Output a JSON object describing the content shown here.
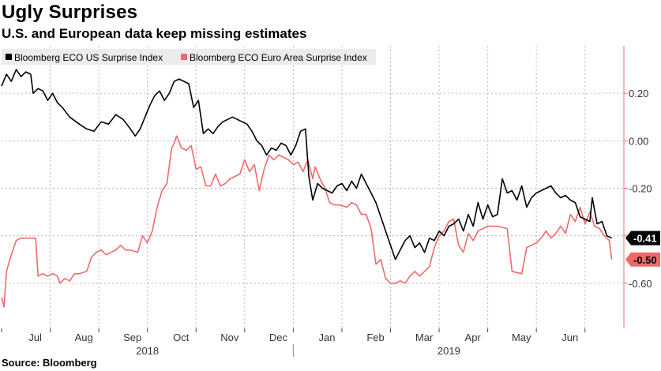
{
  "title": "Ugly Surprises",
  "subtitle": "U.S. and European data keep missing estimates",
  "source": "Source: Bloomberg",
  "colors": {
    "us": "#000000",
    "euro": "#f0696a",
    "axis": "#f07070",
    "grid": "#b8b8b8"
  },
  "chart_data": {
    "type": "line",
    "title": "Ugly Surprises",
    "ylim": [
      -0.79,
      0.4
    ],
    "yticks": [
      0.2,
      0.0,
      -0.2,
      -0.4,
      -0.6
    ],
    "ytick_labels": [
      "0.20",
      "0.00",
      "-0.20",
      "-0.40",
      "-0.60"
    ],
    "months": [
      {
        "label": "Jul",
        "t": 0.7
      },
      {
        "label": "Aug",
        "t": 1.7
      },
      {
        "label": "Sep",
        "t": 2.7
      },
      {
        "label": "Oct",
        "t": 3.7
      },
      {
        "label": "Nov",
        "t": 4.7
      },
      {
        "label": "Dec",
        "t": 5.7
      },
      {
        "label": "Jan",
        "t": 6.7
      },
      {
        "label": "Feb",
        "t": 7.7
      },
      {
        "label": "Mar",
        "t": 8.7
      },
      {
        "label": "Apr",
        "t": 9.7
      },
      {
        "label": "May",
        "t": 10.7
      },
      {
        "label": "Jun",
        "t": 11.7
      }
    ],
    "years": [
      "2018",
      "2019"
    ],
    "series": [
      {
        "name": "Bloomberg ECO US Surprise Index",
        "last_label": "-0.41",
        "points": [
          [
            0.0,
            0.23
          ],
          [
            0.1,
            0.28
          ],
          [
            0.2,
            0.25
          ],
          [
            0.3,
            0.3
          ],
          [
            0.4,
            0.27
          ],
          [
            0.5,
            0.29
          ],
          [
            0.6,
            0.28
          ],
          [
            0.65,
            0.2
          ],
          [
            0.75,
            0.22
          ],
          [
            0.85,
            0.21
          ],
          [
            0.95,
            0.17
          ],
          [
            1.05,
            0.2
          ],
          [
            1.15,
            0.16
          ],
          [
            1.25,
            0.14
          ],
          [
            1.4,
            0.1
          ],
          [
            1.6,
            0.07
          ],
          [
            1.75,
            0.05
          ],
          [
            1.9,
            0.04
          ],
          [
            2.05,
            0.08
          ],
          [
            2.2,
            0.07
          ],
          [
            2.35,
            0.11
          ],
          [
            2.5,
            0.09
          ],
          [
            2.65,
            0.05
          ],
          [
            2.75,
            0.02
          ],
          [
            2.85,
            0.05
          ],
          [
            2.95,
            0.1
          ],
          [
            3.05,
            0.15
          ],
          [
            3.15,
            0.19
          ],
          [
            3.25,
            0.21
          ],
          [
            3.35,
            0.17
          ],
          [
            3.45,
            0.2
          ],
          [
            3.55,
            0.25
          ],
          [
            3.65,
            0.26
          ],
          [
            3.75,
            0.25
          ],
          [
            3.85,
            0.24
          ],
          [
            3.95,
            0.14
          ],
          [
            4.05,
            0.17
          ],
          [
            4.15,
            0.03
          ],
          [
            4.25,
            0.05
          ],
          [
            4.35,
            0.03
          ],
          [
            4.45,
            0.06
          ],
          [
            4.55,
            0.08
          ],
          [
            4.65,
            0.09
          ],
          [
            4.75,
            0.1
          ],
          [
            4.85,
            0.09
          ],
          [
            4.95,
            0.08
          ],
          [
            5.05,
            0.07
          ],
          [
            5.15,
            0.04
          ],
          [
            5.25,
            0.0
          ],
          [
            5.35,
            -0.02
          ],
          [
            5.45,
            -0.06
          ],
          [
            5.55,
            -0.03
          ],
          [
            5.65,
            -0.04
          ],
          [
            5.75,
            -0.01
          ],
          [
            5.85,
            -0.02
          ],
          [
            5.95,
            -0.06
          ],
          [
            6.05,
            -0.02
          ],
          [
            6.15,
            0.04
          ],
          [
            6.25,
            0.05
          ],
          [
            6.32,
            -0.15
          ],
          [
            6.4,
            -0.25
          ],
          [
            6.5,
            -0.18
          ],
          [
            6.6,
            -0.2
          ],
          [
            6.7,
            -0.21
          ],
          [
            6.8,
            -0.22
          ],
          [
            6.9,
            -0.19
          ],
          [
            7.0,
            -0.18
          ],
          [
            7.1,
            -0.21
          ],
          [
            7.2,
            -0.17
          ],
          [
            7.3,
            -0.2
          ],
          [
            7.4,
            -0.14
          ],
          [
            7.5,
            -0.18
          ],
          [
            7.6,
            -0.22
          ],
          [
            7.7,
            -0.26
          ],
          [
            7.8,
            -0.32
          ],
          [
            7.9,
            -0.38
          ],
          [
            8.0,
            -0.44
          ],
          [
            8.1,
            -0.5
          ],
          [
            8.2,
            -0.46
          ],
          [
            8.3,
            -0.42
          ],
          [
            8.4,
            -0.4
          ],
          [
            8.5,
            -0.45
          ],
          [
            8.6,
            -0.43
          ],
          [
            8.7,
            -0.47
          ],
          [
            8.8,
            -0.41
          ],
          [
            8.9,
            -0.42
          ],
          [
            9.0,
            -0.38
          ],
          [
            9.1,
            -0.4
          ],
          [
            9.2,
            -0.36
          ],
          [
            9.3,
            -0.35
          ],
          [
            9.4,
            -0.33
          ],
          [
            9.5,
            -0.38
          ],
          [
            9.6,
            -0.31
          ],
          [
            9.7,
            -0.36
          ],
          [
            9.8,
            -0.26
          ],
          [
            9.9,
            -0.33
          ],
          [
            10.0,
            -0.27
          ],
          [
            10.1,
            -0.32
          ],
          [
            10.2,
            -0.31
          ],
          [
            10.3,
            -0.16
          ],
          [
            10.4,
            -0.22
          ],
          [
            10.5,
            -0.21
          ],
          [
            10.6,
            -0.25
          ],
          [
            10.7,
            -0.19
          ],
          [
            10.8,
            -0.28
          ],
          [
            10.9,
            -0.24
          ],
          [
            11.0,
            -0.22
          ],
          [
            11.1,
            -0.21
          ],
          [
            11.2,
            -0.2
          ],
          [
            11.3,
            -0.19
          ],
          [
            11.4,
            -0.22
          ],
          [
            11.5,
            -0.24
          ],
          [
            11.6,
            -0.23
          ],
          [
            11.7,
            -0.25
          ],
          [
            11.8,
            -0.26
          ],
          [
            11.9,
            -0.32
          ],
          [
            12.0,
            -0.33
          ],
          [
            12.1,
            -0.34
          ],
          [
            12.15,
            -0.24
          ],
          [
            12.25,
            -0.35
          ],
          [
            12.35,
            -0.34
          ],
          [
            12.45,
            -0.4
          ],
          [
            12.55,
            -0.41
          ]
        ]
      },
      {
        "name": "Bloomberg ECO Euro Area Surprise Index",
        "last_label": "-0.50",
        "points": [
          [
            0.0,
            -0.66
          ],
          [
            0.05,
            -0.7
          ],
          [
            0.1,
            -0.55
          ],
          [
            0.2,
            -0.48
          ],
          [
            0.3,
            -0.42
          ],
          [
            0.4,
            -0.41
          ],
          [
            0.5,
            -0.41
          ],
          [
            0.6,
            -0.41
          ],
          [
            0.7,
            -0.41
          ],
          [
            0.75,
            -0.57
          ],
          [
            0.85,
            -0.56
          ],
          [
            0.95,
            -0.57
          ],
          [
            1.05,
            -0.56
          ],
          [
            1.15,
            -0.57
          ],
          [
            1.2,
            -0.6
          ],
          [
            1.3,
            -0.58
          ],
          [
            1.4,
            -0.59
          ],
          [
            1.5,
            -0.56
          ],
          [
            1.6,
            -0.56
          ],
          [
            1.75,
            -0.55
          ],
          [
            1.85,
            -0.49
          ],
          [
            1.95,
            -0.47
          ],
          [
            2.05,
            -0.46
          ],
          [
            2.15,
            -0.48
          ],
          [
            2.25,
            -0.47
          ],
          [
            2.35,
            -0.46
          ],
          [
            2.45,
            -0.44
          ],
          [
            2.55,
            -0.46
          ],
          [
            2.65,
            -0.46
          ],
          [
            2.8,
            -0.47
          ],
          [
            2.9,
            -0.4
          ],
          [
            3.0,
            -0.43
          ],
          [
            3.1,
            -0.38
          ],
          [
            3.2,
            -0.28
          ],
          [
            3.3,
            -0.21
          ],
          [
            3.4,
            -0.18
          ],
          [
            3.5,
            -0.03
          ],
          [
            3.55,
            -0.01
          ],
          [
            3.6,
            0.02
          ],
          [
            3.7,
            -0.03
          ],
          [
            3.8,
            -0.04
          ],
          [
            3.9,
            -0.02
          ],
          [
            4.0,
            -0.12
          ],
          [
            4.1,
            -0.11
          ],
          [
            4.2,
            -0.19
          ],
          [
            4.3,
            -0.19
          ],
          [
            4.4,
            -0.14
          ],
          [
            4.5,
            -0.19
          ],
          [
            4.6,
            -0.18
          ],
          [
            4.7,
            -0.16
          ],
          [
            4.8,
            -0.15
          ],
          [
            4.9,
            -0.14
          ],
          [
            5.0,
            -0.08
          ],
          [
            5.1,
            -0.13
          ],
          [
            5.2,
            -0.1
          ],
          [
            5.3,
            -0.21
          ],
          [
            5.4,
            -0.12
          ],
          [
            5.5,
            -0.06
          ],
          [
            5.6,
            -0.08
          ],
          [
            5.7,
            -0.06
          ],
          [
            5.8,
            -0.07
          ],
          [
            5.9,
            -0.08
          ],
          [
            6.0,
            -0.1
          ],
          [
            6.1,
            -0.09
          ],
          [
            6.2,
            -0.13
          ],
          [
            6.3,
            -0.08
          ],
          [
            6.4,
            -0.16
          ],
          [
            6.45,
            -0.11
          ],
          [
            6.55,
            -0.16
          ],
          [
            6.65,
            -0.2
          ],
          [
            6.75,
            -0.26
          ],
          [
            6.85,
            -0.27
          ],
          [
            6.95,
            -0.27
          ],
          [
            7.1,
            -0.28
          ],
          [
            7.2,
            -0.26
          ],
          [
            7.3,
            -0.27
          ],
          [
            7.4,
            -0.31
          ],
          [
            7.5,
            -0.31
          ],
          [
            7.6,
            -0.37
          ],
          [
            7.7,
            -0.52
          ],
          [
            7.8,
            -0.5
          ],
          [
            7.9,
            -0.58
          ],
          [
            8.0,
            -0.6
          ],
          [
            8.1,
            -0.6
          ],
          [
            8.2,
            -0.59
          ],
          [
            8.3,
            -0.6
          ],
          [
            8.4,
            -0.57
          ],
          [
            8.5,
            -0.55
          ],
          [
            8.6,
            -0.57
          ],
          [
            8.7,
            -0.55
          ],
          [
            8.8,
            -0.53
          ],
          [
            8.9,
            -0.45
          ],
          [
            9.0,
            -0.4
          ],
          [
            9.1,
            -0.38
          ],
          [
            9.2,
            -0.34
          ],
          [
            9.3,
            -0.33
          ],
          [
            9.4,
            -0.44
          ],
          [
            9.5,
            -0.47
          ],
          [
            9.6,
            -0.39
          ],
          [
            9.7,
            -0.42
          ],
          [
            9.8,
            -0.38
          ],
          [
            9.9,
            -0.37
          ],
          [
            10.0,
            -0.36
          ],
          [
            10.2,
            -0.36
          ],
          [
            10.4,
            -0.37
          ],
          [
            10.5,
            -0.55
          ],
          [
            10.7,
            -0.56
          ],
          [
            10.8,
            -0.45
          ],
          [
            10.9,
            -0.44
          ],
          [
            11.0,
            -0.43
          ],
          [
            11.1,
            -0.41
          ],
          [
            11.2,
            -0.38
          ],
          [
            11.3,
            -0.41
          ],
          [
            11.4,
            -0.39
          ],
          [
            11.5,
            -0.36
          ],
          [
            11.6,
            -0.39
          ],
          [
            11.7,
            -0.31
          ],
          [
            11.8,
            -0.34
          ],
          [
            11.9,
            -0.28
          ],
          [
            12.0,
            -0.35
          ],
          [
            12.1,
            -0.3
          ],
          [
            12.2,
            -0.36
          ],
          [
            12.3,
            -0.37
          ],
          [
            12.4,
            -0.4
          ],
          [
            12.5,
            -0.42
          ],
          [
            12.55,
            -0.5
          ]
        ]
      }
    ]
  }
}
